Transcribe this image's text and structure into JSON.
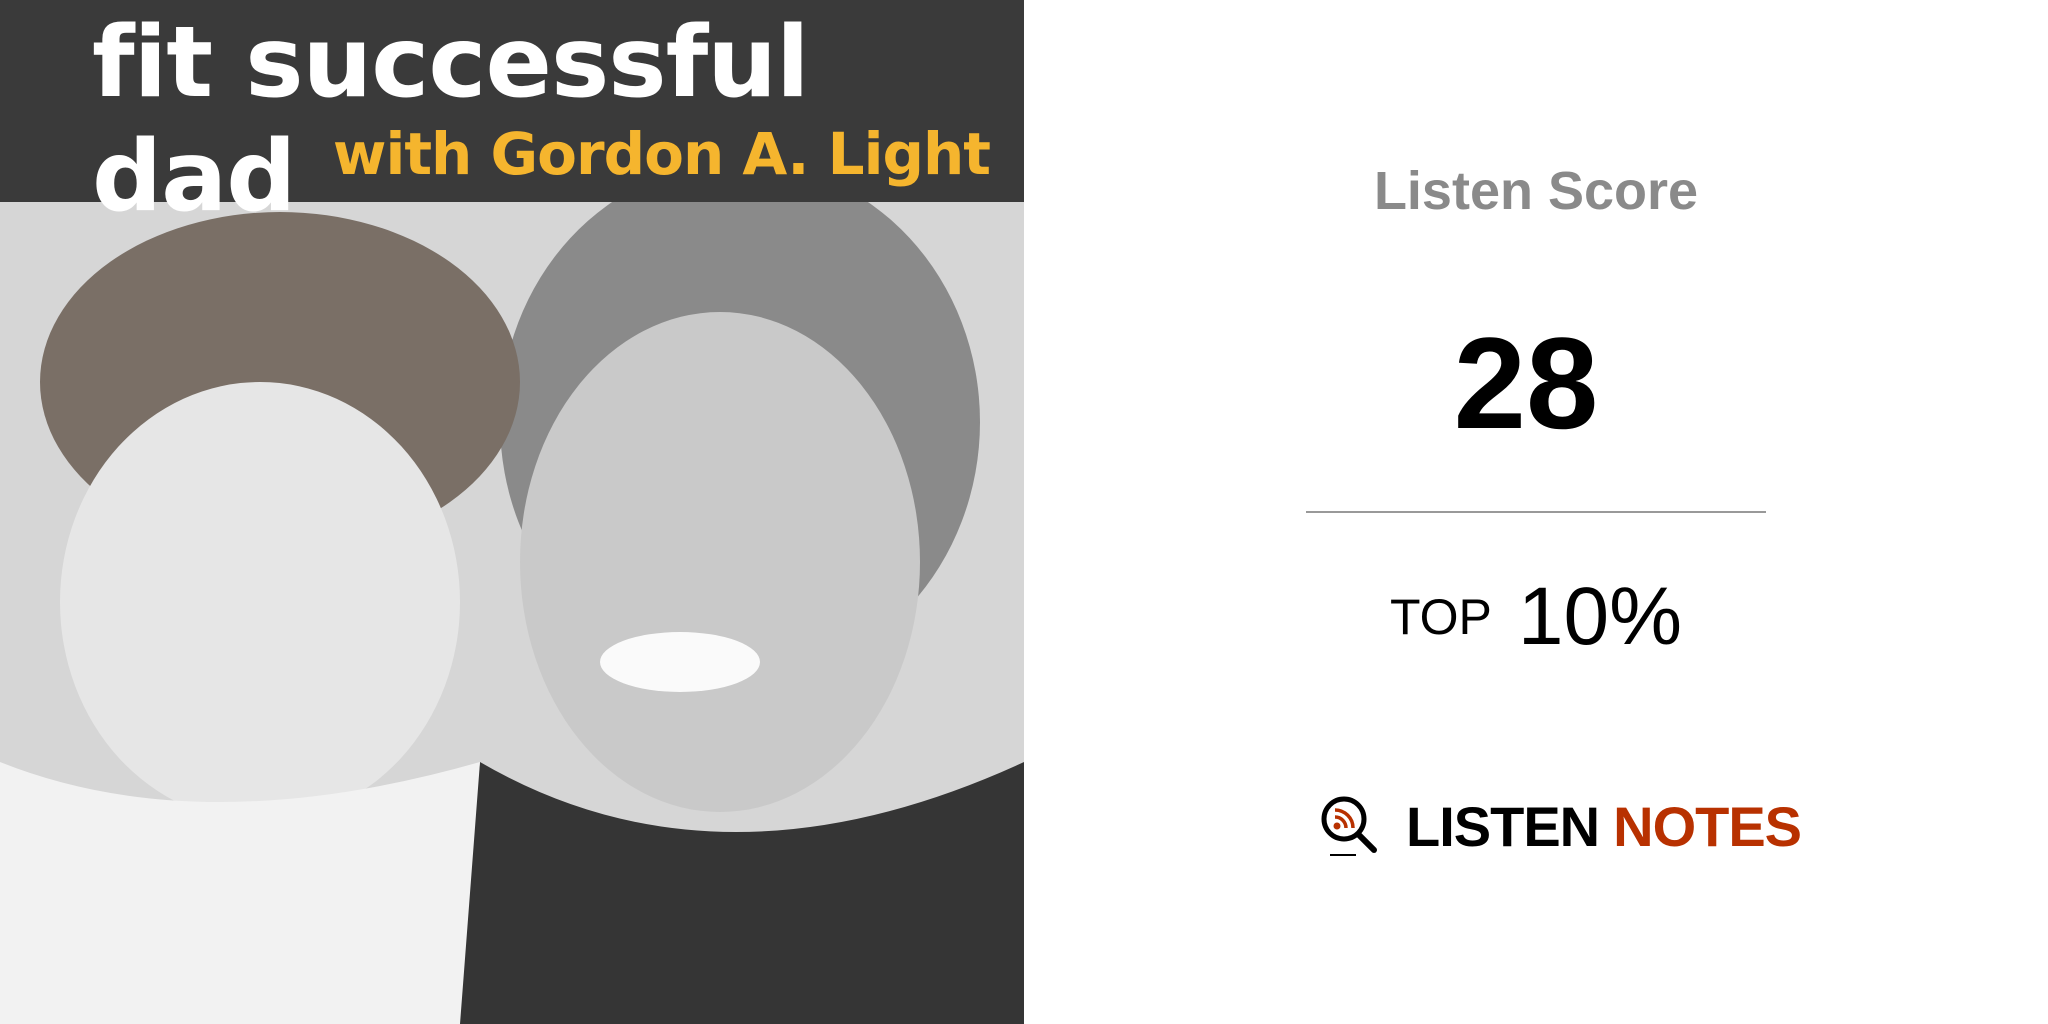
{
  "cover": {
    "title": "fit successful dad",
    "subtitle": "with Gordon A. Light",
    "band_color": "#3a3a3a",
    "subtitle_color": "#f5b52e"
  },
  "score": {
    "label": "Listen Score",
    "value": "28",
    "rank_prefix": "TOP",
    "rank_value": "10%"
  },
  "logo": {
    "word1": "LISTEN",
    "word2": "NOTES",
    "icon": "magnifier-rss-icon",
    "accent": "#b83100"
  }
}
